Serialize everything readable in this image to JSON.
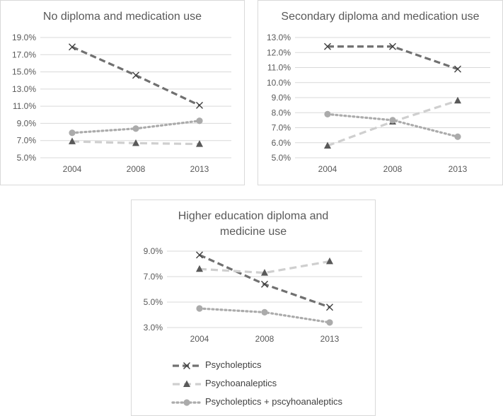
{
  "chart_data": [
    {
      "type": "line",
      "title": "No diploma and medication use",
      "categories": [
        "2004",
        "2008",
        "2013"
      ],
      "yticks": [
        "5.0%",
        "7.0%",
        "9.0%",
        "11.0%",
        "13.0%",
        "15.0%",
        "17.0%",
        "19.0%"
      ],
      "ylim": [
        5,
        19
      ],
      "series": [
        {
          "name": "Psycholeptics",
          "values": [
            17.9,
            14.6,
            11.1
          ]
        },
        {
          "name": "Psychoanaleptics",
          "values": [
            6.9,
            6.7,
            6.6
          ]
        },
        {
          "name": "Psycholeptics + pscyhoanaleptics",
          "values": [
            7.9,
            8.4,
            9.3
          ]
        }
      ]
    },
    {
      "type": "line",
      "title": "Secondary diploma and medication use",
      "categories": [
        "2004",
        "2008",
        "2013"
      ],
      "yticks": [
        "5.0%",
        "6.0%",
        "7.0%",
        "8.0%",
        "9.0%",
        "10.0%",
        "11.0%",
        "12.0%",
        "13.0%"
      ],
      "ylim": [
        5,
        13
      ],
      "series": [
        {
          "name": "Psycholeptics",
          "values": [
            12.4,
            12.4,
            10.9
          ]
        },
        {
          "name": "Psychoanaleptics",
          "values": [
            5.8,
            7.4,
            8.8
          ]
        },
        {
          "name": "Psycholeptics + pscyhoanaleptics",
          "values": [
            7.9,
            7.5,
            6.4
          ]
        }
      ]
    },
    {
      "type": "line",
      "title": "Higher education diploma and medicine use",
      "categories": [
        "2004",
        "2008",
        "2013"
      ],
      "yticks": [
        "3.0%",
        "5.0%",
        "7.0%",
        "9.0%"
      ],
      "ylim": [
        3,
        9
      ],
      "series": [
        {
          "name": "Psycholeptics",
          "values": [
            8.7,
            6.4,
            4.6
          ]
        },
        {
          "name": "Psychoanaleptics",
          "values": [
            7.6,
            7.3,
            8.2
          ]
        },
        {
          "name": "Psycholeptics + pscyhoanaleptics",
          "values": [
            4.5,
            4.2,
            3.4
          ]
        }
      ]
    }
  ],
  "legend": {
    "items": [
      {
        "label": "Psycholeptics",
        "style": "psycholeptics"
      },
      {
        "label": "Psychoanaleptics",
        "style": "psychoanaleptics"
      },
      {
        "label": "Psycholeptics + pscyhoanaleptics",
        "style": "combined"
      }
    ]
  },
  "colors": {
    "psycholeptics": "#707070",
    "psychoanaleptics": "#cfcfcf",
    "combined": "#ababab",
    "gridline": "#d9d9d9",
    "axis_text": "#595959",
    "border": "#d9d9d9"
  }
}
